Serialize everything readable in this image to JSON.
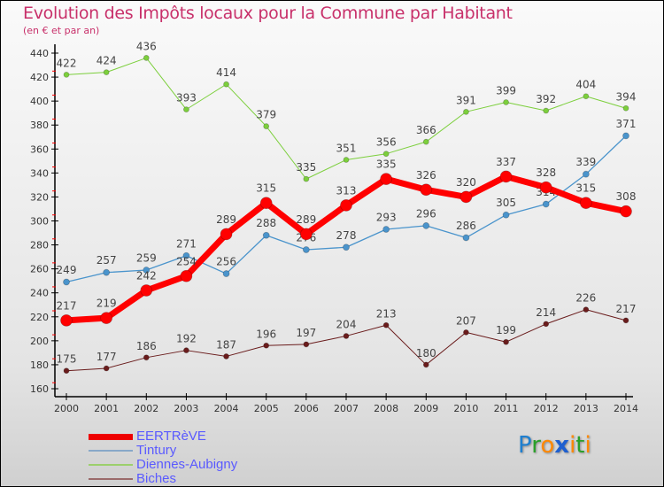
{
  "title": "Evolution des Impôts locaux pour la Commune par Habitant",
  "subtitle": "(en € et par an)",
  "logo": {
    "parts": [
      "P",
      "r",
      "o",
      "x",
      "i",
      "t",
      "i"
    ],
    "colors": [
      "#1e7fd0",
      "#2aa02a",
      "#ff8800",
      "#1e5fd0",
      "#ff8800",
      "#2aa02a",
      "#ff8800"
    ]
  },
  "chart_data": {
    "type": "line",
    "title": "Evolution des Impôts locaux pour la Commune par Habitant",
    "ylabel": "(en € et par an)",
    "x": [
      2000,
      2001,
      2002,
      2003,
      2004,
      2005,
      2006,
      2007,
      2008,
      2009,
      2010,
      2011,
      2012,
      2013,
      2014
    ],
    "ylim": [
      160,
      440
    ],
    "yticks": [
      160,
      180,
      200,
      220,
      240,
      260,
      280,
      300,
      320,
      340,
      360,
      380,
      400,
      420,
      440
    ],
    "legend_position": "bottom-left",
    "series": [
      {
        "name": "Diennes-Aubigny",
        "color": "#7ccf3c",
        "width": 1,
        "r": 3,
        "values": [
          422,
          424,
          436,
          393,
          414,
          379,
          335,
          351,
          356,
          366,
          391,
          399,
          392,
          404,
          394
        ]
      },
      {
        "name": "Tintury",
        "color": "#4a94cc",
        "width": 1.3,
        "r": 3.5,
        "values": [
          249,
          257,
          259,
          271,
          256,
          288,
          276,
          278,
          293,
          296,
          286,
          305,
          314,
          339,
          371
        ]
      },
      {
        "name": "Biches",
        "color": "#6a1c1c",
        "width": 1,
        "r": 3,
        "values": [
          175,
          177,
          186,
          192,
          187,
          196,
          197,
          204,
          213,
          180,
          207,
          199,
          214,
          226,
          217
        ]
      },
      {
        "name": "EERTRèVE",
        "color": "#ff0000",
        "width": 7,
        "r": 6.5,
        "values": [
          217,
          219,
          242,
          254,
          289,
          315,
          289,
          313,
          335,
          326,
          320,
          337,
          328,
          315,
          308
        ]
      }
    ]
  }
}
